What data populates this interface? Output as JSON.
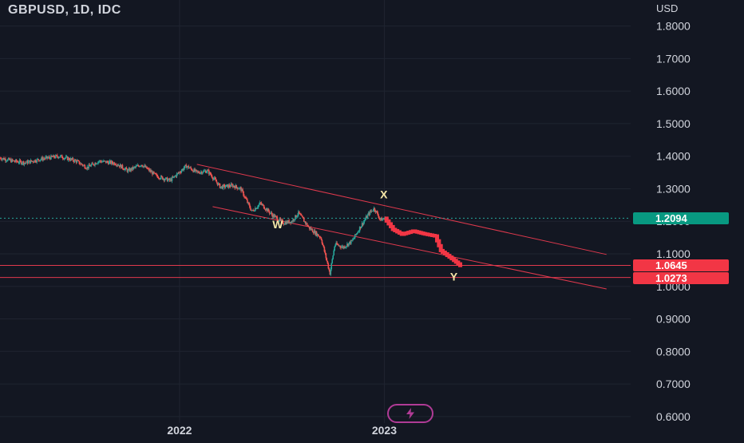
{
  "header": {
    "symbol_title": "GBPUSD, 1D, IDC",
    "axis_unit": "USD"
  },
  "colors": {
    "background": "#131722",
    "grid": "#1f2430",
    "text": "#d1d4dc",
    "up": "#26a69a",
    "down": "#ef5350",
    "forecast": "#f23645",
    "channel": "#e0394d",
    "current_price_bg": "#089981",
    "wave_label": "#f5e7a8",
    "logo": "#b03b96"
  },
  "price_tags": [
    {
      "label": "1.2094",
      "value": 1.2094,
      "color": "#089981"
    },
    {
      "label": "1.0645",
      "value": 1.0645,
      "color": "#f23645"
    },
    {
      "label": "1.0273",
      "value": 1.0273,
      "color": "#f23645"
    }
  ],
  "icons": {
    "logo": "tradingview-bolt-icon"
  },
  "chart_data": {
    "type": "candlestick",
    "symbol": "GBPUSD",
    "interval": "1D",
    "source": "IDC",
    "y_unit": "USD",
    "ylim": [
      0.58,
      1.88
    ],
    "y_ticks": [
      {
        "value": 1.8,
        "label": "1.8000"
      },
      {
        "value": 1.7,
        "label": "1.7000"
      },
      {
        "value": 1.6,
        "label": "1.6000"
      },
      {
        "value": 1.5,
        "label": "1.5000"
      },
      {
        "value": 1.4,
        "label": "1.4000"
      },
      {
        "value": 1.3,
        "label": "1.3000"
      },
      {
        "value": 1.2,
        "label": "1.2000"
      },
      {
        "value": 1.1,
        "label": "1.1000"
      },
      {
        "value": 1.0,
        "label": "1.0000"
      },
      {
        "value": 0.9,
        "label": "0.9000"
      },
      {
        "value": 0.8,
        "label": "0.8000"
      },
      {
        "value": 0.7,
        "label": "0.7000"
      },
      {
        "value": 0.6,
        "label": "0.6000"
      }
    ],
    "x_ticks": [
      {
        "date": "2022-01-01",
        "label": "2022"
      },
      {
        "date": "2023-01-01",
        "label": "2023"
      }
    ],
    "xlim": [
      "2021-02-15",
      "2024-03-15"
    ],
    "grid": true,
    "price_path": [
      [
        "2021-02-15",
        1.395
      ],
      [
        "2021-03-10",
        1.385
      ],
      [
        "2021-04-01",
        1.38
      ],
      [
        "2021-05-01",
        1.392
      ],
      [
        "2021-06-01",
        1.4
      ],
      [
        "2021-07-01",
        1.385
      ],
      [
        "2021-07-20",
        1.365
      ],
      [
        "2021-08-10",
        1.385
      ],
      [
        "2021-09-10",
        1.378
      ],
      [
        "2021-10-01",
        1.355
      ],
      [
        "2021-10-25",
        1.375
      ],
      [
        "2021-11-20",
        1.34
      ],
      [
        "2021-12-15",
        1.325
      ],
      [
        "2022-01-13",
        1.37
      ],
      [
        "2022-02-01",
        1.35
      ],
      [
        "2022-02-20",
        1.355
      ],
      [
        "2022-03-15",
        1.305
      ],
      [
        "2022-04-05",
        1.31
      ],
      [
        "2022-04-20",
        1.3
      ],
      [
        "2022-05-10",
        1.23
      ],
      [
        "2022-05-25",
        1.255
      ],
      [
        "2022-06-15",
        1.22
      ],
      [
        "2022-07-05",
        1.195
      ],
      [
        "2022-07-20",
        1.2
      ],
      [
        "2022-08-01",
        1.225
      ],
      [
        "2022-08-20",
        1.18
      ],
      [
        "2022-09-10",
        1.15
      ],
      [
        "2022-09-26",
        1.04
      ],
      [
        "2022-10-05",
        1.13
      ],
      [
        "2022-10-20",
        1.12
      ],
      [
        "2022-11-05",
        1.14
      ],
      [
        "2022-11-20",
        1.185
      ],
      [
        "2022-12-05",
        1.225
      ],
      [
        "2022-12-14",
        1.24
      ],
      [
        "2022-12-25",
        1.205
      ],
      [
        "2023-01-05",
        1.209
      ]
    ],
    "forecast_path": [
      [
        "2023-01-05",
        1.2094
      ],
      [
        "2023-01-20",
        1.175
      ],
      [
        "2023-02-05",
        1.16
      ],
      [
        "2023-02-25",
        1.17
      ],
      [
        "2023-03-15",
        1.162
      ],
      [
        "2023-04-05",
        1.155
      ],
      [
        "2023-04-15",
        1.11
      ],
      [
        "2023-05-05",
        1.085
      ],
      [
        "2023-05-20",
        1.064
      ]
    ],
    "channel_lines": [
      {
        "from": [
          "2022-02-01",
          1.375
        ],
        "to": [
          "2024-02-01",
          1.098
        ]
      },
      {
        "from": [
          "2022-03-01",
          1.245
        ],
        "to": [
          "2024-02-01",
          0.992
        ]
      }
    ],
    "horizontal_lines": [
      1.0645,
      1.0273
    ],
    "current_price": 1.2094,
    "wave_labels": [
      {
        "label": "W",
        "date": "2022-06-25",
        "value": 1.178
      },
      {
        "label": "X",
        "date": "2022-12-31",
        "value": 1.27
      },
      {
        "label": "Y",
        "date": "2023-05-05",
        "value": 1.018
      }
    ]
  }
}
